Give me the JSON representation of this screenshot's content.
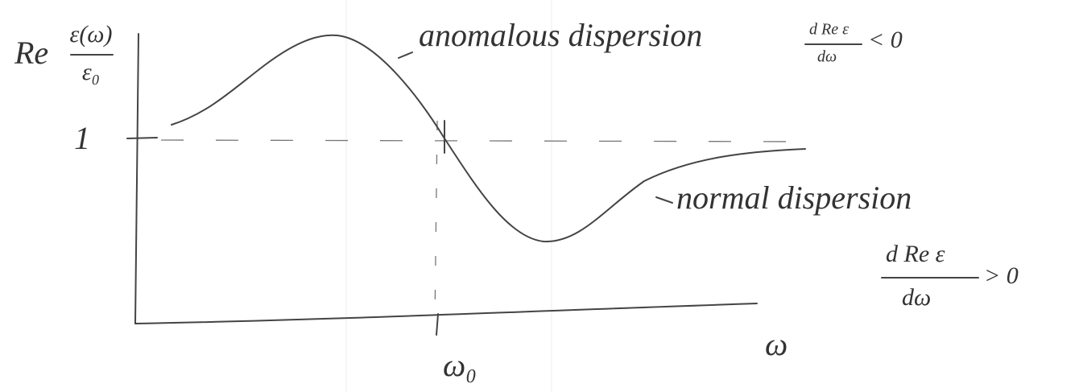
{
  "y_axis": {
    "prefix": "Re",
    "numerator": "ε(ω)",
    "denominator": "ε₀"
  },
  "reference_level": "1",
  "x_axis": {
    "label": "ω",
    "resonance": "ω₀"
  },
  "annotations": [
    {
      "label": "anomalous dispersion",
      "numerator": "d Re ε",
      "denominator": "dω",
      "relation": "< 0"
    },
    {
      "label": "normal dispersion",
      "numerator": "d Re ε",
      "denominator": "dω",
      "relation": "> 0"
    }
  ]
}
